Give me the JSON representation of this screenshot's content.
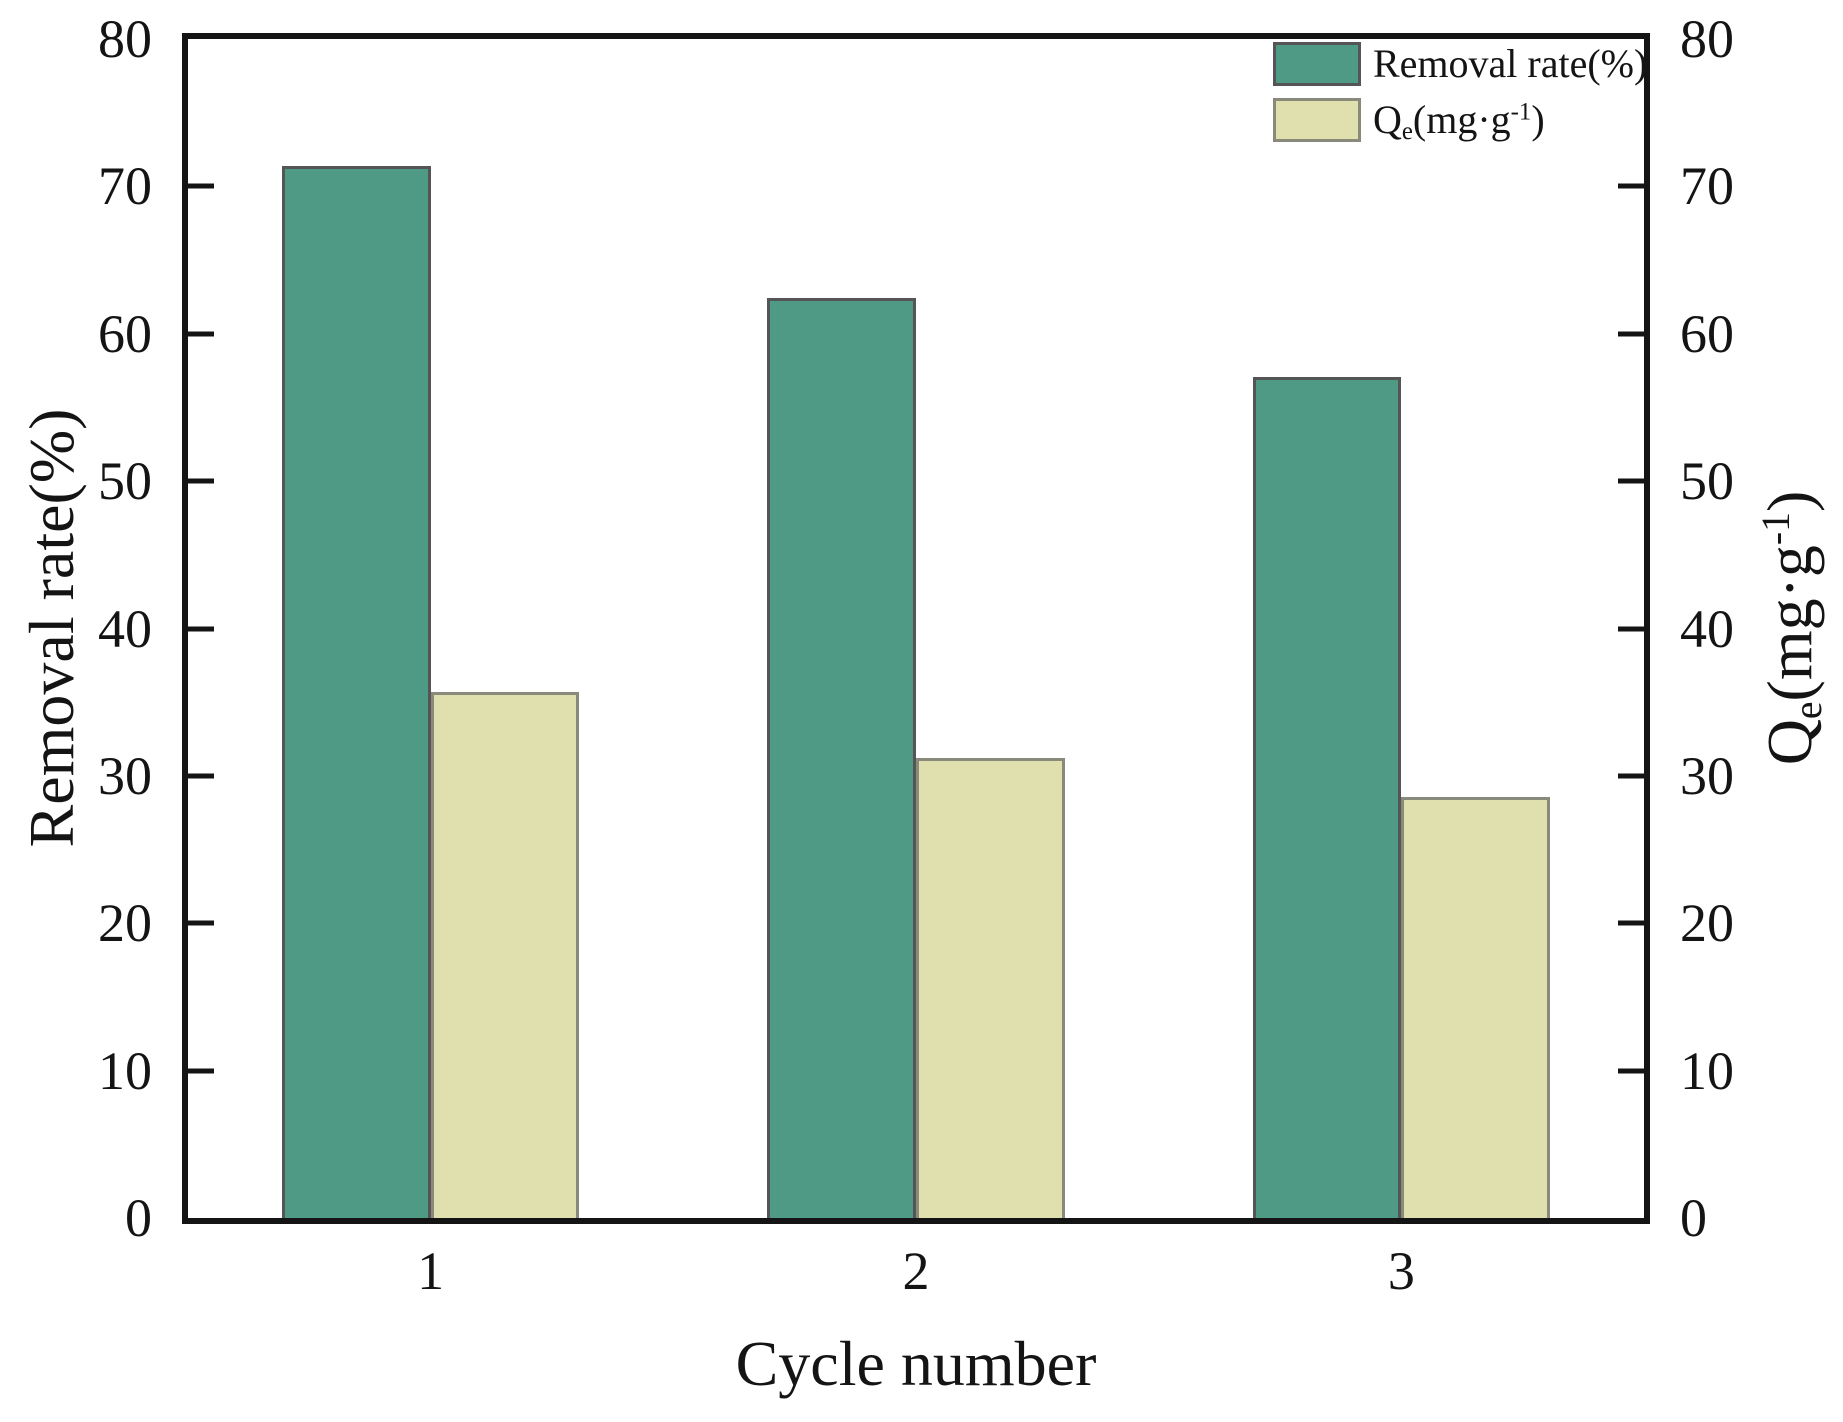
{
  "figure": {
    "background": "#ffffff",
    "frame_color": "#141414"
  },
  "chart_data": {
    "type": "bar",
    "title": "",
    "xlabel": "Cycle number",
    "categories": [
      "1",
      "2",
      "3"
    ],
    "axes": {
      "left": {
        "label": "Removal rate(%)",
        "min": 0,
        "max": 80,
        "tick_step": 10,
        "ticks": [
          0,
          10,
          20,
          30,
          40,
          50,
          60,
          70,
          80
        ]
      },
      "right": {
        "label": "Qe(mg·g-1)",
        "label_parts": [
          {
            "t": "Q"
          },
          {
            "t": "e",
            "s": "sub"
          },
          {
            "t": "(mg·g"
          },
          {
            "t": "-1",
            "s": "sup"
          },
          {
            "t": ")"
          }
        ],
        "min": 0,
        "max": 80,
        "tick_step": 10,
        "ticks": [
          0,
          10,
          20,
          30,
          40,
          50,
          60,
          70,
          80
        ]
      }
    },
    "series": [
      {
        "name": "Removal rate(%)",
        "name_parts": [
          {
            "t": "Removal rate(%)"
          }
        ],
        "axis": "left",
        "values": [
          71.4,
          62.4,
          57.1
        ],
        "fill": "#4f9a84",
        "stroke": "#555555"
      },
      {
        "name": "Qe(mg·g-1)",
        "name_parts": [
          {
            "t": "Q"
          },
          {
            "t": "e",
            "s": "sub"
          },
          {
            "t": "(mg·g"
          },
          {
            "t": "-1",
            "s": "sup"
          },
          {
            "t": ")"
          }
        ],
        "axis": "right",
        "values": [
          35.7,
          31.2,
          28.6
        ],
        "fill": "#dfe0ae",
        "stroke": "#8a8a7c"
      }
    ],
    "legend_position": "top-right",
    "grid": false,
    "bar_width_fraction": 0.306
  }
}
